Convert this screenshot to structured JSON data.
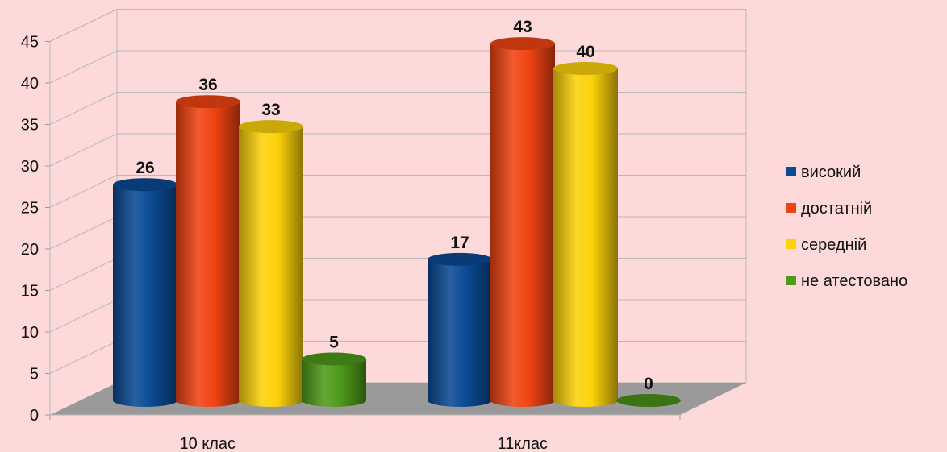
{
  "chart_data": {
    "type": "bar",
    "style": "3d-cylinder",
    "categories": [
      "10 клас",
      "11клас"
    ],
    "series": [
      {
        "name": "високий",
        "color": "#0b4a94",
        "values": [
          26,
          17
        ]
      },
      {
        "name": "достатній",
        "color": "#f04312",
        "values": [
          36,
          43
        ]
      },
      {
        "name": "середній",
        "color": "#fcd20a",
        "values": [
          33,
          40
        ]
      },
      {
        "name": "не атестовано",
        "color": "#4f9a1a",
        "values": [
          5,
          0
        ]
      }
    ],
    "ylim": [
      0,
      45
    ],
    "yticks": [
      0,
      5,
      10,
      15,
      20,
      25,
      30,
      35,
      40,
      45
    ],
    "grid": true,
    "legend": "right",
    "background": "#fdd9d9",
    "floor_color": "#9a9a9a"
  }
}
